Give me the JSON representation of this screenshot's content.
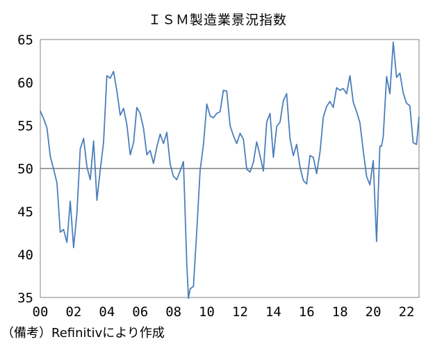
{
  "chart_data": {
    "type": "line",
    "title": "ＩＳＭ製造業景況指数",
    "xlabel": "",
    "ylabel": "",
    "ylim": [
      35,
      65
    ],
    "xlim": [
      2000.0,
      2022.75
    ],
    "yticks": [
      "65",
      "60",
      "55",
      "50",
      "45",
      "40",
      "35"
    ],
    "xticks": [
      "00",
      "02",
      "04",
      "06",
      "08",
      "10",
      "12",
      "14",
      "16",
      "18",
      "20",
      "22"
    ],
    "reference_line": 50,
    "grid": false,
    "legend": "none",
    "line_color": "#4a7ebb",
    "reference_line_color": "#7f7f7f",
    "series": [
      {
        "x": [
          2000.0,
          2000.2,
          2000.4,
          2000.6,
          2000.8,
          2001.0,
          2001.2,
          2001.4,
          2001.6,
          2001.8,
          2002.0,
          2002.2,
          2002.4,
          2002.6,
          2002.8,
          2003.0,
          2003.2,
          2003.4,
          2003.6,
          2003.8,
          2004.0,
          2004.2,
          2004.4,
          2004.6,
          2004.8,
          2005.0,
          2005.2,
          2005.4,
          2005.6,
          2005.8,
          2006.0,
          2006.2,
          2006.4,
          2006.6,
          2006.8,
          2007.0,
          2007.2,
          2007.4,
          2007.6,
          2007.8,
          2008.0,
          2008.2,
          2008.4,
          2008.6,
          2008.8,
          2008.9,
          2009.0,
          2009.2,
          2009.4,
          2009.6,
          2009.8,
          2010.0,
          2010.2,
          2010.4,
          2010.6,
          2010.8,
          2011.0,
          2011.2,
          2011.4,
          2011.6,
          2011.8,
          2012.0,
          2012.2,
          2012.4,
          2012.6,
          2012.8,
          2013.0,
          2013.2,
          2013.4,
          2013.6,
          2013.8,
          2014.0,
          2014.2,
          2014.4,
          2014.6,
          2014.8,
          2015.0,
          2015.2,
          2015.4,
          2015.6,
          2015.8,
          2016.0,
          2016.2,
          2016.4,
          2016.6,
          2016.8,
          2017.0,
          2017.2,
          2017.4,
          2017.6,
          2017.8,
          2018.0,
          2018.2,
          2018.4,
          2018.6,
          2018.8,
          2019.0,
          2019.2,
          2019.4,
          2019.6,
          2019.8,
          2020.0,
          2020.2,
          2020.4,
          2020.5,
          2020.6,
          2020.8,
          2021.0,
          2021.2,
          2021.4,
          2021.6,
          2021.8,
          2022.0,
          2022.2,
          2022.4,
          2022.6,
          2022.75
        ],
        "values": [
          56.7,
          55.8,
          54.7,
          51.4,
          49.9,
          48.3,
          42.6,
          42.9,
          41.4,
          46.2,
          40.8,
          44.8,
          52.3,
          53.5,
          50.2,
          48.7,
          53.2,
          46.3,
          49.8,
          53.0,
          60.8,
          60.5,
          61.3,
          59.0,
          56.2,
          57.0,
          55.1,
          51.6,
          53.0,
          57.1,
          56.4,
          54.7,
          51.6,
          52.1,
          50.6,
          52.5,
          54.0,
          52.9,
          54.2,
          50.5,
          49.1,
          48.7,
          49.7,
          50.8,
          38.9,
          34.9,
          36.0,
          36.3,
          42.8,
          49.8,
          52.8,
          57.5,
          56.1,
          55.9,
          56.4,
          56.6,
          59.1,
          59.0,
          55.0,
          53.8,
          52.9,
          54.1,
          53.4,
          49.9,
          49.6,
          50.7,
          53.1,
          51.5,
          49.7,
          55.4,
          56.4,
          51.3,
          54.9,
          55.4,
          57.9,
          58.7,
          53.5,
          51.5,
          52.8,
          50.2,
          48.6,
          48.2,
          51.5,
          51.3,
          49.4,
          51.9,
          56.0,
          57.2,
          57.8,
          57.1,
          59.4,
          59.1,
          59.3,
          58.7,
          60.8,
          57.7,
          56.6,
          55.3,
          52.1,
          49.1,
          48.1,
          50.9,
          41.5,
          52.6,
          52.6,
          53.7,
          60.7,
          58.7,
          64.7,
          60.6,
          61.1,
          58.8,
          57.6,
          57.3,
          53.0,
          52.8,
          56.0
        ]
      }
    ]
  },
  "footnote": "（備考）Refinitivにより作成"
}
